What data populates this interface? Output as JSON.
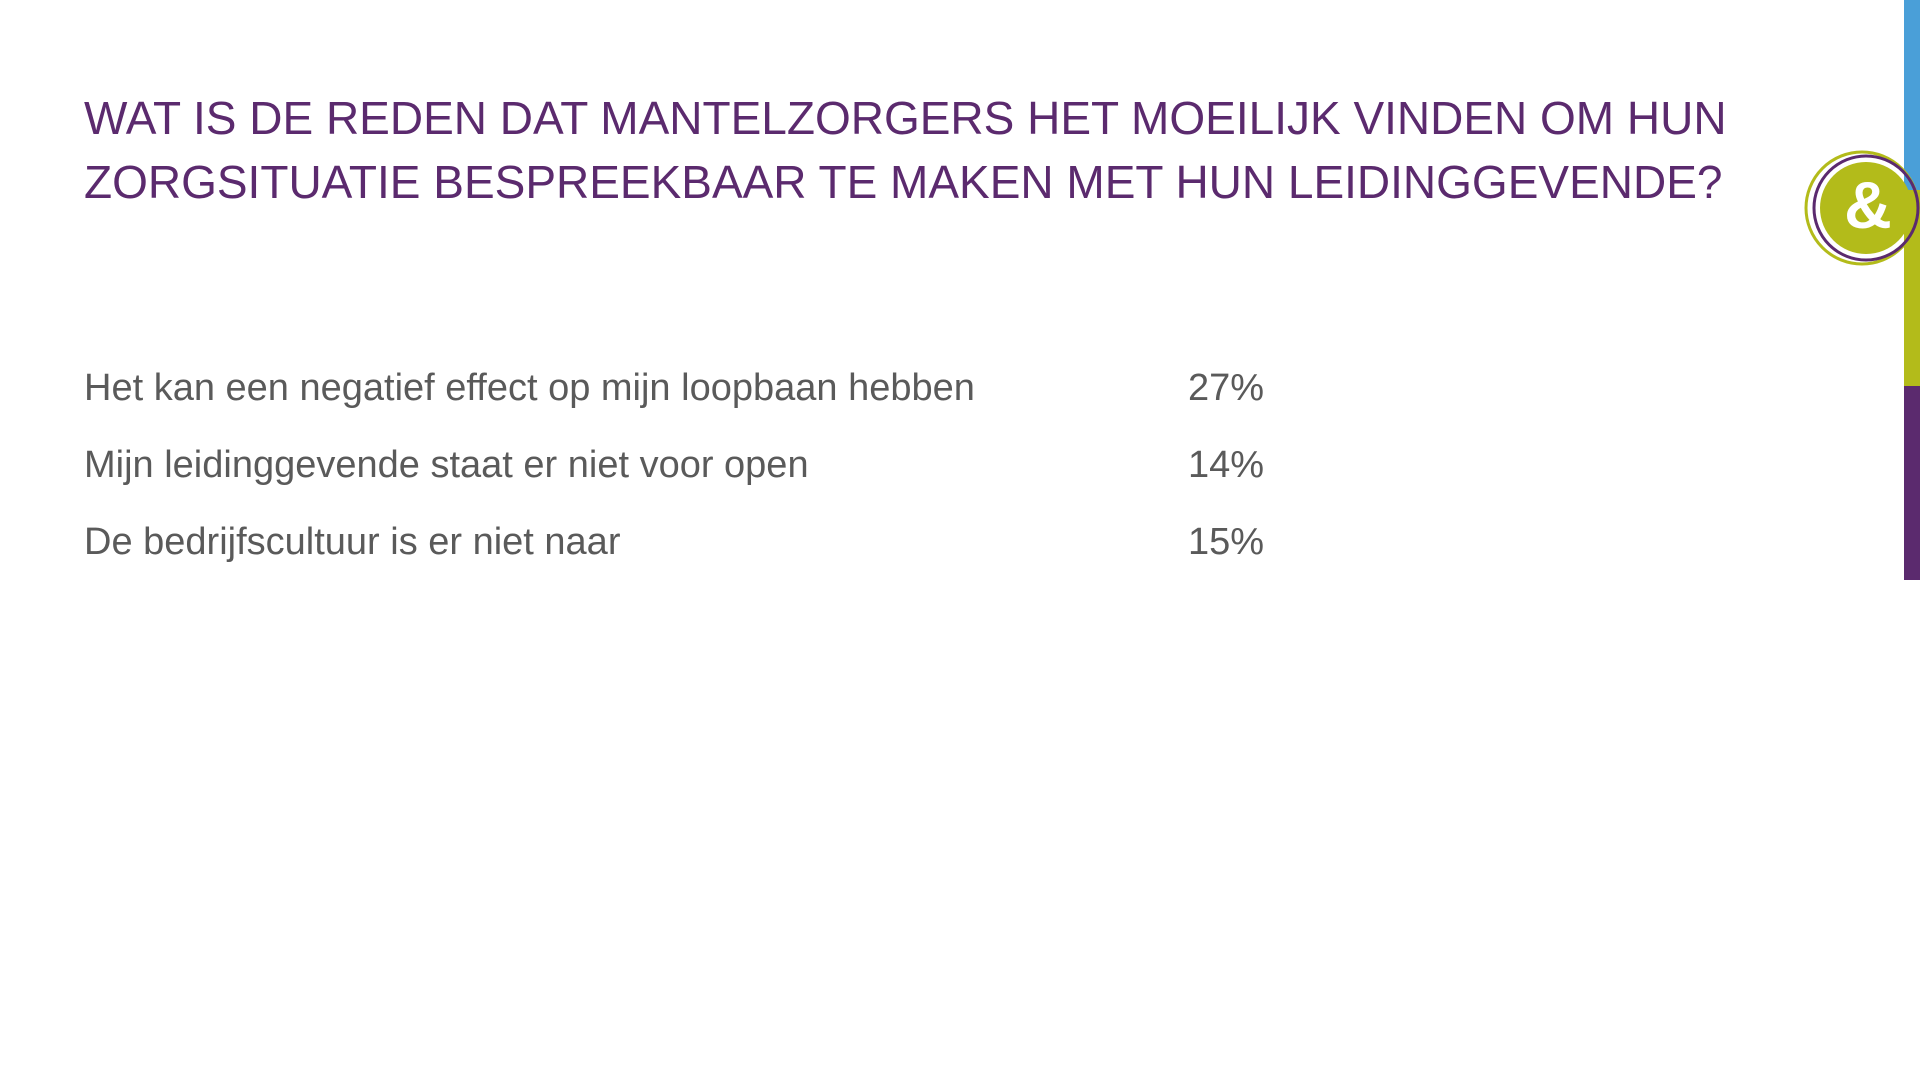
{
  "title": {
    "line1": "WAT IS DE REDEN DAT MANTELZORGERS HET MOEILIJK VINDEN OM HUN",
    "line2": "ZORGSITUATIE BESPREEKBAAR TE MAKEN MET HUN LEIDINGGEVENDE?"
  },
  "rows": [
    {
      "label": "Het kan een negatief effect op mijn loopbaan hebben",
      "value": "27%"
    },
    {
      "label": "Mijn leidinggevende staat er niet voor open",
      "value": "14%"
    },
    {
      "label": "De bedrijfscultuur is er niet naar",
      "value": "15%"
    }
  ],
  "logo": {
    "icon": "ampersand-logo-icon",
    "glyph": "&"
  },
  "colors": {
    "title": "#5b2a6e",
    "text": "#5a5a5a",
    "accent_blue": "#4a9fd8",
    "accent_green": "#b3bb1a",
    "accent_purple": "#5b2a6e"
  }
}
